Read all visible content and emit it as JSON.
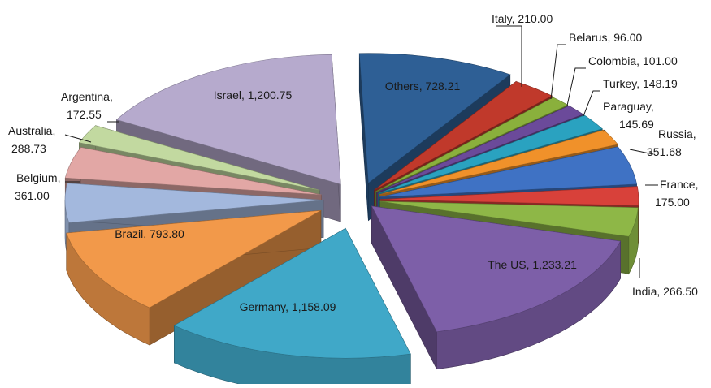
{
  "chart_data": {
    "type": "pie",
    "style": "3d-exploded",
    "title": "",
    "slices": [
      {
        "label": "Others",
        "value": 728.21,
        "value_text": "728.21",
        "color": "#2e5f95"
      },
      {
        "label": "Italy",
        "value": 210.0,
        "value_text": "210.00",
        "color": "#c0392b"
      },
      {
        "label": "Belarus",
        "value": 96.0,
        "value_text": "96.00",
        "color": "#8ab03c"
      },
      {
        "label": "Colombia",
        "value": 101.0,
        "value_text": "101.00",
        "color": "#6b4a9a"
      },
      {
        "label": "Turkey",
        "value": 148.19,
        "value_text": "148.19",
        "color": "#2aa2c0"
      },
      {
        "label": "Paraguay",
        "value": 145.69,
        "value_text": "145.69",
        "color": "#f0912a"
      },
      {
        "label": "Russia",
        "value": 351.68,
        "value_text": "351.68",
        "color": "#3f72c4"
      },
      {
        "label": "France",
        "value": 175.0,
        "value_text": "175.00",
        "color": "#d8413a"
      },
      {
        "label": "India",
        "value": 266.5,
        "value_text": "266.50",
        "color": "#8eb747"
      },
      {
        "label": "The US",
        "value": 1233.21,
        "value_text": "1,233.21",
        "color": "#7d5fa8"
      },
      {
        "label": "Germany",
        "value": 1158.09,
        "value_text": "1,158.09",
        "color": "#40a8c8"
      },
      {
        "label": "Brazil",
        "value": 793.8,
        "value_text": "793.80",
        "color": "#f2994a"
      },
      {
        "label": "Belgium",
        "value": 361.0,
        "value_text": "361.00",
        "color": "#a3b8dd"
      },
      {
        "label": "Australia",
        "value": 288.73,
        "value_text": "288.73",
        "color": "#e2a7a5"
      },
      {
        "label": "Argentina",
        "value": 172.55,
        "value_text": "172.55",
        "color": "#c2d9a0"
      },
      {
        "label": "Israel",
        "value": 1200.75,
        "value_text": "1,200.75",
        "color": "#b6aacd"
      }
    ]
  }
}
